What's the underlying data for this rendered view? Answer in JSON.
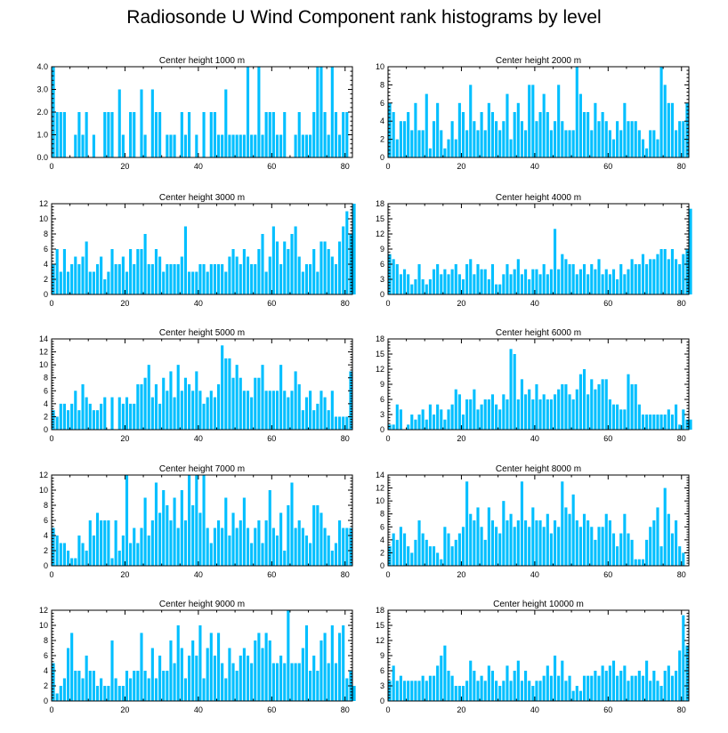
{
  "title": "Radiosonde U Wind Component rank histograms by level",
  "colors": {
    "bar": "#00BFFF",
    "axis": "#000000",
    "background": "#FFFFFF"
  },
  "chart_data": [
    {
      "type": "bar",
      "title": "Center height 1000 m",
      "xlim": [
        0,
        82
      ],
      "xticks": [
        0,
        20,
        40,
        60,
        80
      ],
      "ylim": [
        0,
        4
      ],
      "yticks": [
        "0.0",
        "1.0",
        "2.0",
        "3.0",
        "4.0"
      ],
      "ytick_values": [
        0,
        1,
        2,
        3,
        4
      ],
      "values": [
        4,
        2,
        2,
        2,
        0,
        0,
        1,
        2,
        1,
        2,
        0,
        1,
        0,
        0,
        2,
        2,
        2,
        0,
        3,
        1,
        0,
        2,
        2,
        0,
        3,
        1,
        0,
        3,
        2,
        2,
        0,
        1,
        1,
        1,
        0,
        2,
        1,
        2,
        0,
        1,
        0,
        2,
        0,
        2,
        2,
        1,
        1,
        3,
        1,
        1,
        1,
        1,
        1,
        4,
        1,
        1,
        4,
        1,
        2,
        2,
        2,
        1,
        1,
        2,
        0,
        0,
        1,
        2,
        1,
        1,
        1,
        2,
        4,
        4,
        2,
        1,
        4,
        2,
        1,
        2,
        2,
        0
      ]
    },
    {
      "type": "bar",
      "title": "Center height 2000 m",
      "xlim": [
        0,
        82
      ],
      "xticks": [
        0,
        20,
        40,
        60,
        80
      ],
      "ylim": [
        0,
        10
      ],
      "yticks": [
        "0",
        "2",
        "4",
        "6",
        "8",
        "10"
      ],
      "ytick_values": [
        0,
        2,
        4,
        6,
        8,
        10
      ],
      "values": [
        6,
        5,
        2,
        4,
        4,
        5,
        3,
        6,
        3,
        3,
        7,
        1,
        4,
        6,
        3,
        1,
        2,
        4,
        2,
        6,
        5,
        3,
        8,
        4,
        3,
        5,
        3,
        6,
        5,
        4,
        3,
        4,
        7,
        2,
        5,
        6,
        4,
        3,
        8,
        8,
        4,
        5,
        7,
        5,
        3,
        4,
        8,
        4,
        3,
        3,
        3,
        10,
        7,
        5,
        5,
        3,
        6,
        4,
        5,
        4,
        3,
        2,
        4,
        3,
        6,
        4,
        4,
        4,
        3,
        2,
        1,
        3,
        3,
        2,
        10,
        8,
        6,
        6,
        3,
        4,
        4,
        6
      ]
    },
    {
      "type": "bar",
      "title": "Center height 3000 m",
      "xlim": [
        0,
        82
      ],
      "xticks": [
        0,
        20,
        40,
        60,
        80
      ],
      "ylim": [
        0,
        12
      ],
      "yticks": [
        "0",
        "2",
        "4",
        "6",
        "8",
        "10",
        "12"
      ],
      "ytick_values": [
        0,
        2,
        4,
        6,
        8,
        10,
        12
      ],
      "values": [
        4,
        6,
        3,
        6,
        3,
        4,
        5,
        4,
        5,
        7,
        3,
        3,
        4,
        5,
        2,
        3,
        6,
        4,
        4,
        5,
        3,
        6,
        4,
        6,
        6,
        8,
        4,
        4,
        6,
        5,
        3,
        4,
        4,
        4,
        4,
        5,
        9,
        3,
        3,
        3,
        4,
        4,
        3,
        4,
        4,
        4,
        4,
        3,
        5,
        6,
        5,
        4,
        6,
        5,
        4,
        4,
        6,
        8,
        3,
        5,
        9,
        7,
        4,
        7,
        6,
        8,
        9,
        5,
        3,
        4,
        4,
        6,
        3,
        7,
        7,
        6,
        5,
        4,
        7,
        9,
        11,
        8,
        12
      ]
    },
    {
      "type": "bar",
      "title": "Center height 4000 m",
      "xlim": [
        0,
        82
      ],
      "xticks": [
        0,
        20,
        40,
        60,
        80
      ],
      "ylim": [
        0,
        18
      ],
      "yticks": [
        "0",
        "3",
        "6",
        "9",
        "12",
        "15",
        "18"
      ],
      "ytick_values": [
        0,
        3,
        6,
        9,
        12,
        15,
        18
      ],
      "values": [
        8,
        7,
        6,
        4,
        5,
        4,
        2,
        3,
        6,
        3,
        2,
        3,
        5,
        6,
        4,
        5,
        4,
        5,
        6,
        4,
        3,
        6,
        7,
        4,
        6,
        5,
        5,
        3,
        6,
        2,
        2,
        4,
        6,
        4,
        5,
        7,
        4,
        5,
        3,
        5,
        5,
        4,
        6,
        4,
        5,
        13,
        5,
        8,
        7,
        6,
        6,
        4,
        5,
        6,
        4,
        6,
        5,
        7,
        4,
        5,
        4,
        5,
        3,
        6,
        4,
        5,
        7,
        6,
        6,
        8,
        6,
        7,
        7,
        8,
        9,
        9,
        7,
        9,
        7,
        6,
        8,
        9,
        17
      ]
    },
    {
      "type": "bar",
      "title": "Center height 5000 m",
      "xlim": [
        0,
        82
      ],
      "xticks": [
        0,
        20,
        40,
        60,
        80
      ],
      "ylim": [
        0,
        14
      ],
      "yticks": [
        "0",
        "2",
        "4",
        "6",
        "8",
        "10",
        "12",
        "14"
      ],
      "ytick_values": [
        0,
        2,
        4,
        6,
        8,
        10,
        12,
        14
      ],
      "values": [
        3,
        2,
        4,
        4,
        3,
        4,
        6,
        3,
        7,
        5,
        4,
        3,
        3,
        4,
        5,
        0,
        5,
        0,
        5,
        4,
        5,
        4,
        4,
        7,
        7,
        8,
        10,
        5,
        7,
        4,
        8,
        6,
        9,
        5,
        10,
        6,
        8,
        7,
        6,
        9,
        6,
        4,
        5,
        6,
        5,
        7,
        13,
        11,
        11,
        8,
        10,
        8,
        6,
        6,
        5,
        8,
        8,
        10,
        6,
        6,
        6,
        6,
        10,
        6,
        5,
        6,
        9,
        7,
        3,
        5,
        6,
        3,
        4,
        6,
        5,
        3,
        6,
        2,
        2,
        2,
        2,
        9
      ]
    },
    {
      "type": "bar",
      "title": "Center height 6000 m",
      "xlim": [
        0,
        82
      ],
      "xticks": [
        0,
        20,
        40,
        60,
        80
      ],
      "ylim": [
        0,
        18
      ],
      "yticks": [
        "0",
        "3",
        "6",
        "9",
        "12",
        "15",
        "18"
      ],
      "ytick_values": [
        0,
        3,
        6,
        9,
        12,
        15,
        18
      ],
      "values": [
        1,
        1,
        5,
        4,
        0,
        1,
        3,
        2,
        3,
        4,
        2,
        5,
        3,
        5,
        4,
        2,
        4,
        5,
        8,
        7,
        3,
        6,
        6,
        8,
        4,
        5,
        6,
        6,
        7,
        5,
        4,
        7,
        6,
        16,
        15,
        6,
        10,
        7,
        8,
        6,
        9,
        6,
        7,
        6,
        6,
        7,
        8,
        9,
        9,
        7,
        6,
        8,
        11,
        12,
        7,
        10,
        8,
        9,
        10,
        10,
        6,
        5,
        5,
        4,
        4,
        11,
        9,
        9,
        5,
        3,
        3,
        3,
        3,
        3,
        3,
        3,
        4,
        3,
        5,
        1,
        4,
        2,
        2
      ]
    },
    {
      "type": "bar",
      "title": "Center height 7000 m",
      "xlim": [
        0,
        82
      ],
      "xticks": [
        0,
        20,
        40,
        60,
        80
      ],
      "ylim": [
        0,
        12
      ],
      "yticks": [
        "0",
        "2",
        "4",
        "6",
        "8",
        "10",
        "12"
      ],
      "ytick_values": [
        0,
        2,
        4,
        6,
        8,
        10,
        12
      ],
      "values": [
        5,
        4,
        3,
        3,
        2,
        1,
        1,
        4,
        3,
        2,
        6,
        4,
        7,
        6,
        6,
        6,
        1,
        6,
        2,
        4,
        12,
        3,
        5,
        3,
        5,
        9,
        4,
        6,
        11,
        7,
        10,
        8,
        6,
        9,
        5,
        10,
        6,
        12,
        8,
        12,
        7,
        12,
        5,
        3,
        5,
        6,
        5,
        9,
        4,
        7,
        5,
        6,
        9,
        5,
        3,
        5,
        6,
        3,
        6,
        10,
        5,
        4,
        7,
        2,
        8,
        11,
        5,
        6,
        5,
        4,
        3,
        8,
        8,
        7,
        5,
        4,
        2,
        3,
        6,
        5,
        5,
        5
      ]
    },
    {
      "type": "bar",
      "title": "Center height 8000 m",
      "xlim": [
        0,
        82
      ],
      "xticks": [
        0,
        20,
        40,
        60,
        80
      ],
      "ylim": [
        0,
        14
      ],
      "yticks": [
        "0",
        "2",
        "4",
        "6",
        "8",
        "10",
        "12",
        "14"
      ],
      "ytick_values": [
        0,
        2,
        4,
        6,
        8,
        10,
        12,
        14
      ],
      "values": [
        3,
        5,
        4,
        6,
        5,
        3,
        2,
        4,
        7,
        5,
        4,
        3,
        3,
        2,
        1,
        6,
        5,
        3,
        4,
        5,
        6,
        13,
        8,
        7,
        9,
        6,
        4,
        9,
        7,
        6,
        5,
        10,
        7,
        8,
        6,
        7,
        13,
        7,
        6,
        9,
        7,
        7,
        6,
        8,
        5,
        7,
        6,
        13,
        9,
        8,
        11,
        7,
        6,
        8,
        7,
        6,
        4,
        6,
        6,
        8,
        7,
        5,
        3,
        5,
        8,
        5,
        4,
        1,
        1,
        1,
        4,
        6,
        7,
        9,
        3,
        12,
        8,
        5,
        7,
        3,
        2
      ]
    },
    {
      "type": "bar",
      "title": "Center height 9000 m",
      "xlim": [
        0,
        82
      ],
      "xticks": [
        0,
        20,
        40,
        60,
        80
      ],
      "ylim": [
        0,
        12
      ],
      "yticks": [
        "0",
        "2",
        "4",
        "6",
        "8",
        "10",
        "12"
      ],
      "ytick_values": [
        0,
        2,
        4,
        6,
        8,
        10,
        12
      ],
      "values": [
        5,
        1,
        2,
        3,
        7,
        9,
        4,
        4,
        3,
        6,
        4,
        4,
        2,
        3,
        2,
        2,
        8,
        3,
        2,
        2,
        4,
        3,
        4,
        4,
        9,
        4,
        3,
        7,
        3,
        6,
        4,
        4,
        8,
        5,
        10,
        7,
        3,
        6,
        8,
        6,
        10,
        3,
        7,
        9,
        6,
        9,
        5,
        3,
        7,
        5,
        4,
        6,
        7,
        6,
        5,
        8,
        9,
        7,
        9,
        8,
        5,
        5,
        6,
        5,
        12,
        5,
        5,
        5,
        7,
        10,
        4,
        6,
        4,
        8,
        9,
        5,
        10,
        5,
        9,
        10,
        3,
        4,
        2
      ]
    },
    {
      "type": "bar",
      "title": "Center height 10000 m",
      "xlim": [
        0,
        82
      ],
      "xticks": [
        0,
        20,
        40,
        60,
        80
      ],
      "ylim": [
        0,
        18
      ],
      "yticks": [
        "0",
        "3",
        "6",
        "9",
        "12",
        "15",
        "18"
      ],
      "ytick_values": [
        0,
        3,
        6,
        9,
        12,
        15,
        18
      ],
      "values": [
        4,
        7,
        4,
        5,
        4,
        4,
        4,
        4,
        4,
        5,
        4,
        5,
        5,
        7,
        9,
        11,
        6,
        5,
        3,
        3,
        3,
        4,
        8,
        6,
        4,
        5,
        4,
        7,
        6,
        4,
        3,
        4,
        7,
        4,
        6,
        8,
        4,
        6,
        4,
        3,
        4,
        4,
        5,
        7,
        5,
        9,
        5,
        8,
        4,
        5,
        2,
        3,
        2,
        5,
        5,
        5,
        6,
        5,
        7,
        6,
        7,
        8,
        5,
        6,
        7,
        4,
        5,
        5,
        6,
        5,
        8,
        4,
        6,
        4,
        3,
        6,
        7,
        5,
        6,
        10,
        17,
        11
      ]
    }
  ]
}
